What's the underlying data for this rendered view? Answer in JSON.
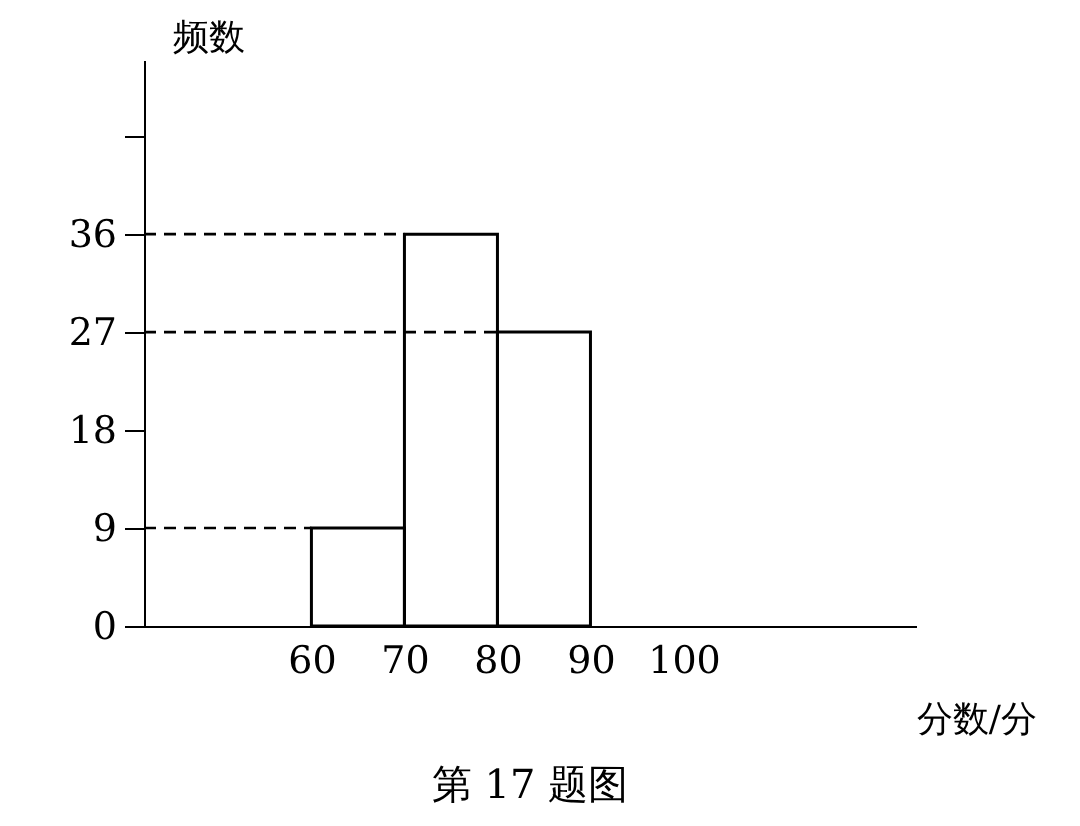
{
  "chart_data": {
    "type": "histogram",
    "bins": [
      60,
      70,
      80,
      90,
      100
    ],
    "values": [
      9,
      36,
      27,
      null
    ],
    "color": "#000000",
    "xlabel": "分数/分",
    "ylabel": "频数",
    "xlim": [
      42,
      125
    ],
    "ylim": [
      0,
      52
    ],
    "xticks": [
      60,
      70,
      80,
      90,
      100
    ],
    "yticks": [
      0,
      9,
      18,
      27,
      36,
      {
        "value": 45,
        "label": null
      }
    ],
    "ref_lines": [
      {
        "axis": "y",
        "value": 9,
        "line_style": "dashed"
      },
      {
        "axis": "y",
        "value": 27,
        "line_style": "dashed"
      },
      {
        "axis": "y",
        "value": 36,
        "line_style": "dashed"
      }
    ],
    "grid": false,
    "annotations": [
      "第 17 题图"
    ]
  }
}
